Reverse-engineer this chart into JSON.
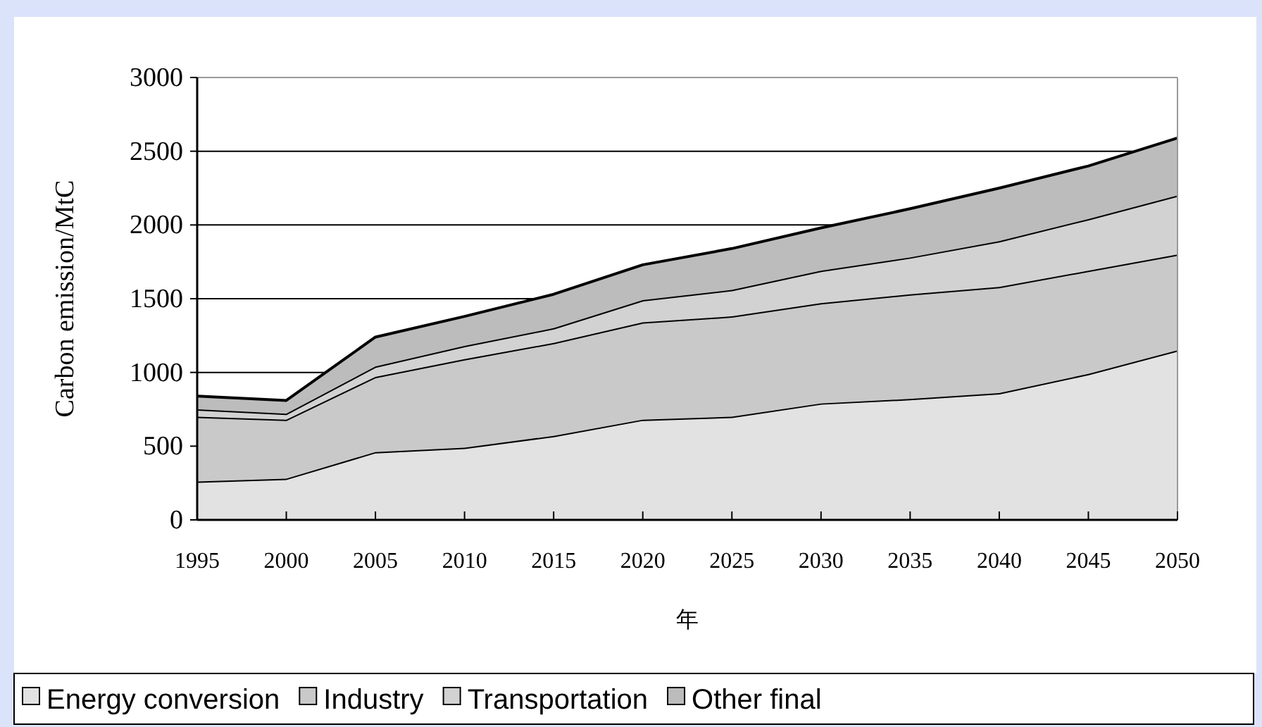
{
  "chart_data": {
    "type": "area",
    "stacked": true,
    "xlabel": "年",
    "ylabel": "Carbon emission/MtC",
    "categories": [
      "1995",
      "2000",
      "2005",
      "2010",
      "2015",
      "2020",
      "2025",
      "2030",
      "2035",
      "2040",
      "2045",
      "2050"
    ],
    "series": [
      {
        "name": "Energy conversion",
        "color": "#e2e2e2",
        "values": [
          260,
          280,
          460,
          490,
          570,
          680,
          700,
          790,
          820,
          860,
          990,
          1150
        ]
      },
      {
        "name": "Industry",
        "color": "#c9c9c9",
        "values": [
          440,
          400,
          510,
          600,
          630,
          660,
          680,
          680,
          710,
          720,
          700,
          650
        ]
      },
      {
        "name": "Transportation",
        "color": "#d2d2d2",
        "values": [
          50,
          40,
          70,
          90,
          100,
          150,
          180,
          220,
          250,
          310,
          350,
          400
        ]
      },
      {
        "name": "Other final",
        "color": "#bcbcbc",
        "values": [
          90,
          90,
          200,
          200,
          230,
          240,
          280,
          290,
          330,
          360,
          360,
          390
        ]
      }
    ],
    "ylim": [
      0,
      3000
    ],
    "yticks": [
      0,
      500,
      1000,
      1500,
      2000,
      2500,
      3000
    ],
    "grid": "y",
    "legend": "bottom"
  }
}
